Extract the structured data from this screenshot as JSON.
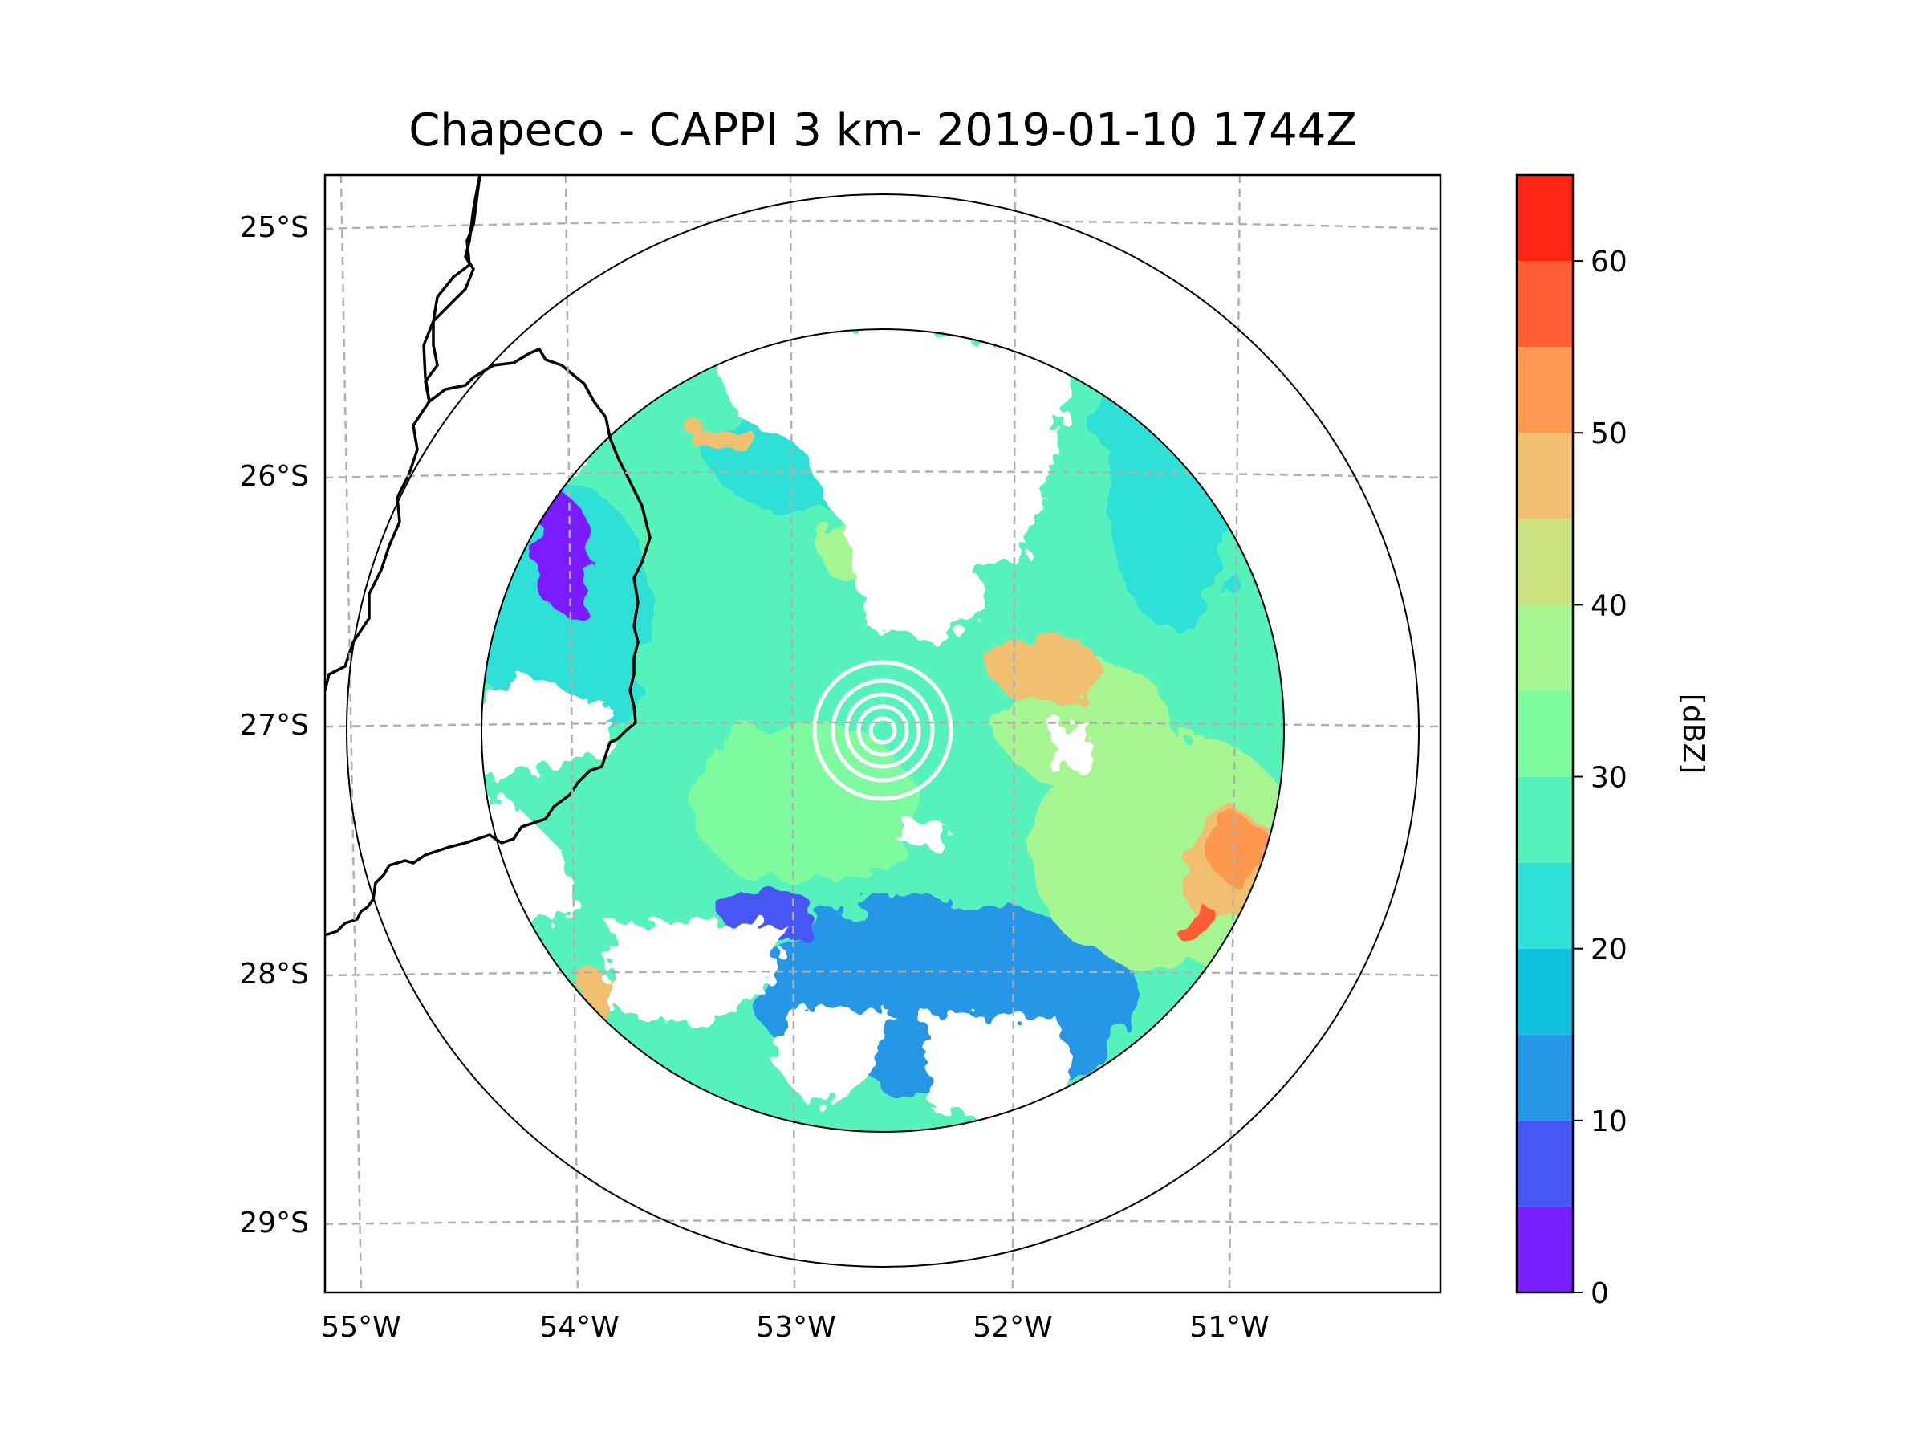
{
  "title": "Chapeco - CAPPI 3 km- 2019-01-10 1744Z",
  "map": {
    "lon_labels": [
      "55°W",
      "54°W",
      "53°W",
      "52°W",
      "51°W"
    ],
    "lat_labels": [
      "25°S",
      "26°S",
      "27°S",
      "28°S",
      "29°S"
    ],
    "extent": {
      "lon": [
        -55.18,
        -50.05
      ],
      "lat": [
        -29.27,
        -24.78
      ]
    },
    "radar_center": {
      "lon": -52.6,
      "lat": -27.0
    },
    "gridlines": "dashed",
    "range_rings": "2 (inner data boundary and outer ring)"
  },
  "colorbar": {
    "label": "[dBZ]",
    "ticks": [
      "0",
      "10",
      "20",
      "30",
      "40",
      "50",
      "60"
    ],
    "range": [
      0,
      65
    ],
    "step": 5,
    "colors": [
      "#7a1fff",
      "#4657f4",
      "#2696e6",
      "#0fc0df",
      "#2ee0d5",
      "#55f2bb",
      "#7efb9e",
      "#a5f590",
      "#cce27f",
      "#f0c070",
      "#ff9850",
      "#ff5d34",
      "#ff2414"
    ]
  }
}
